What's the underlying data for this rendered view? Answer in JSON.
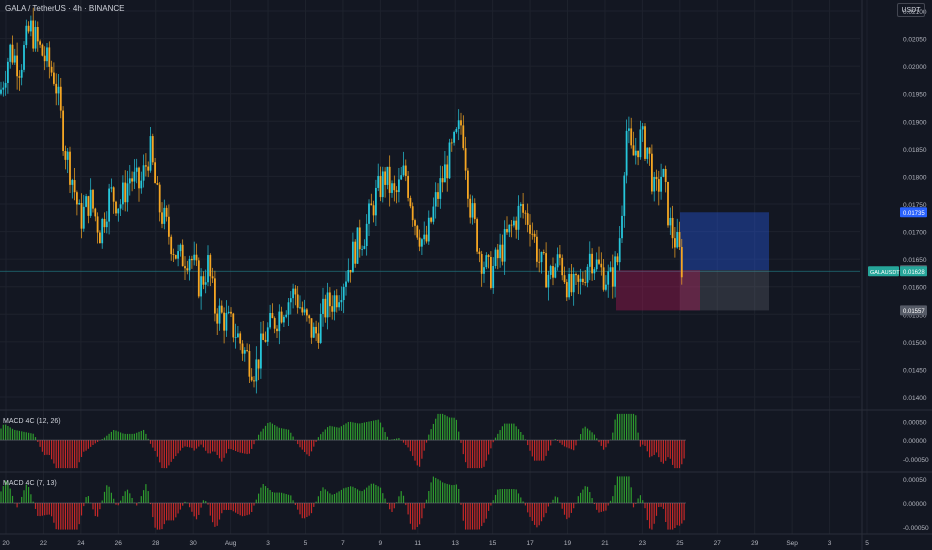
{
  "header": {
    "title": "GALA / TetherUS · 4h · BINANCE",
    "currency": "USDT"
  },
  "colors": {
    "background": "#131722",
    "up": "#26c6da",
    "down": "#f5a623",
    "grid": "#1e222d",
    "macd_up": "#2e9c2e",
    "macd_down": "#c62828",
    "price_line": "#1e6f7a"
  },
  "chart_data": [
    {
      "type": "candlestick",
      "title": "GALA / TetherUS · 4h · BINANCE",
      "ylim": [
        0.0138,
        0.0212
      ],
      "y_ticks": [
        "0.02100",
        "0.02050",
        "0.02000",
        "0.01950",
        "0.01900",
        "0.01850",
        "0.01800",
        "0.01750",
        "0.01700",
        "0.01650",
        "0.01600",
        "0.01550",
        "0.01500",
        "0.01450",
        "0.01400"
      ],
      "x_ticks": [
        "20",
        "22",
        "24",
        "26",
        "28",
        "30",
        "Aug",
        "3",
        "5",
        "7",
        "9",
        "11",
        "13",
        "15",
        "17",
        "19",
        "21",
        "23",
        "25",
        "27",
        "29",
        "Sep",
        "3",
        "5"
      ],
      "close_path": [
        [
          0,
          0.0195
        ],
        [
          10,
          0.0203
        ],
        [
          20,
          0.02
        ],
        [
          30,
          0.0207
        ],
        [
          40,
          0.0203
        ],
        [
          55,
          0.0198
        ],
        [
          65,
          0.0185
        ],
        [
          72,
          0.018
        ],
        [
          80,
          0.0172
        ],
        [
          90,
          0.0176
        ],
        [
          100,
          0.017
        ],
        [
          110,
          0.0177
        ],
        [
          120,
          0.0175
        ],
        [
          130,
          0.018
        ],
        [
          140,
          0.0178
        ],
        [
          150,
          0.0185
        ],
        [
          158,
          0.0175
        ],
        [
          168,
          0.017
        ],
        [
          178,
          0.0165
        ],
        [
          190,
          0.0166
        ],
        [
          200,
          0.016
        ],
        [
          208,
          0.0164
        ],
        [
          215,
          0.0156
        ],
        [
          225,
          0.0154
        ],
        [
          235,
          0.0152
        ],
        [
          245,
          0.0148
        ],
        [
          255,
          0.0145
        ],
        [
          265,
          0.0151
        ],
        [
          275,
          0.0154
        ],
        [
          285,
          0.0157
        ],
        [
          295,
          0.0159
        ],
        [
          305,
          0.0154
        ],
        [
          315,
          0.0151
        ],
        [
          325,
          0.0156
        ],
        [
          335,
          0.0158
        ],
        [
          345,
          0.0162
        ],
        [
          355,
          0.0167
        ],
        [
          365,
          0.017
        ],
        [
          375,
          0.0176
        ],
        [
          385,
          0.018
        ],
        [
          395,
          0.0176
        ],
        [
          405,
          0.0181
        ],
        [
          415,
          0.0172
        ],
        [
          425,
          0.0167
        ],
        [
          435,
          0.0175
        ],
        [
          445,
          0.0181
        ],
        [
          455,
          0.0186
        ],
        [
          462,
          0.019
        ],
        [
          470,
          0.0175
        ],
        [
          480,
          0.0166
        ],
        [
          490,
          0.0162
        ],
        [
          500,
          0.0166
        ],
        [
          510,
          0.017
        ],
        [
          520,
          0.0174
        ],
        [
          530,
          0.0172
        ],
        [
          540,
          0.0164
        ],
        [
          550,
          0.0162
        ],
        [
          560,
          0.0165
        ],
        [
          570,
          0.0159
        ],
        [
          580,
          0.016
        ],
        [
          590,
          0.0166
        ],
        [
          600,
          0.0163
        ],
        [
          610,
          0.0161
        ],
        [
          618,
          0.0165
        ],
        [
          622,
          0.0175
        ],
        [
          626,
          0.0189
        ],
        [
          632,
          0.0183
        ],
        [
          640,
          0.0187
        ],
        [
          648,
          0.0185
        ],
        [
          655,
          0.0176
        ],
        [
          662,
          0.0181
        ],
        [
          670,
          0.0171
        ],
        [
          678,
          0.0167
        ],
        [
          684,
          0.0162
        ]
      ],
      "last_price": "0.01628",
      "hline": 0.01628,
      "axis_labels": [
        {
          "price": 0.01735,
          "text": "0.01735",
          "color": "#2962ff"
        },
        {
          "price": 0.0163,
          "text": "0.01630",
          "color": "#555a66"
        },
        {
          "price": 0.01628,
          "text": "0.01628",
          "color": "#26a69a",
          "tag": "GALAUSDT"
        },
        {
          "price": 0.01557,
          "text": "0.01557",
          "color": "#555a66"
        }
      ],
      "long_position": {
        "entry": 0.0163,
        "target": 0.01735,
        "stop": 0.01557
      }
    },
    {
      "type": "histogram",
      "title": "MACD 4C (12, 26)",
      "y_ticks": [
        "0.00050",
        "0.00000",
        "-0.00050"
      ],
      "ylim": [
        -0.0008,
        0.00075
      ]
    },
    {
      "type": "histogram",
      "title": "MACD 4C (7, 13)",
      "y_ticks": [
        "0.00050",
        "0.00000",
        "-0.00050"
      ],
      "ylim": [
        -0.0006,
        0.0006
      ]
    }
  ]
}
